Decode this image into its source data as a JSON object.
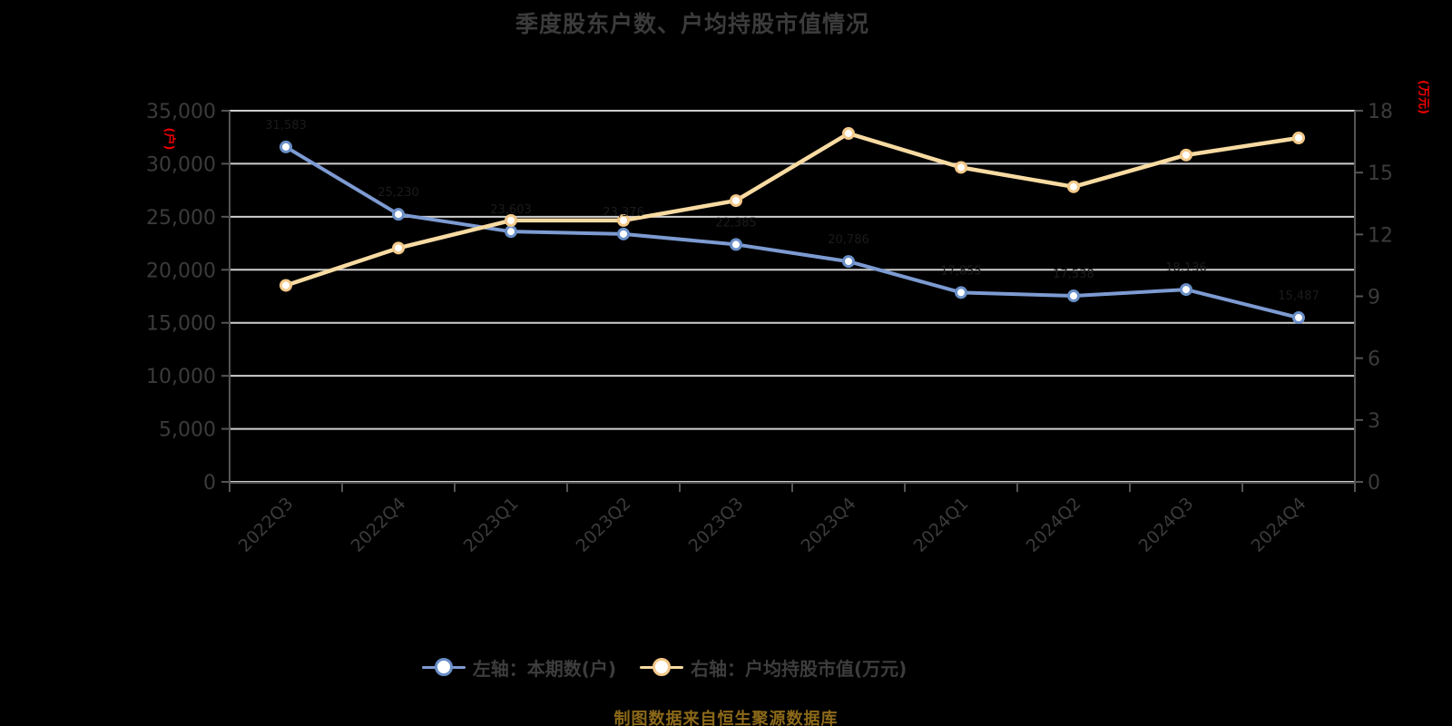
{
  "title": "季度股东户数、户均持股市值情况",
  "caption": "制图数据来自恒生聚源数据库",
  "legend": {
    "items": [
      {
        "label": "左轴：本期数(户)",
        "color": "#7d9bd2",
        "ring": "#6a8fc8"
      },
      {
        "label": "右轴：户均持股市值(万元)",
        "color": "#f8dba2",
        "ring": "#f3c98a"
      }
    ]
  },
  "colors": {
    "background": "#000000",
    "title_text": "#3b3b3b",
    "axis_text": "#3b3b3b",
    "grid_line": "#cfcfcf",
    "axis_line": "#555555",
    "unit_label_red": "#ee0000",
    "hidden_point_label": "#1b1b1b",
    "series_blue": "#7d9bd2",
    "series_blue_ring": "#6a8fc8",
    "series_yellow": "#f8dba2",
    "series_yellow_ring": "#f3c98a",
    "source_text": "#8c6919"
  },
  "chart_data": {
    "type": "line",
    "title": "季度股东户数、户均持股市值情况",
    "grid": true,
    "legend_position": "bottom",
    "categories": [
      "2022Q3",
      "2022Q4",
      "2023Q1",
      "2023Q2",
      "2023Q3",
      "2023Q4",
      "2024Q1",
      "2024Q2",
      "2024Q3",
      "2024Q4"
    ],
    "left_axis": {
      "unit": "(户)",
      "min": 0,
      "max": 35000,
      "tick_step": 5000,
      "tick_labels": [
        "0",
        "5,000",
        "10,000",
        "15,000",
        "20,000",
        "25,000",
        "30,000",
        "35,000"
      ]
    },
    "right_axis": {
      "unit": "(万元)",
      "min": 0,
      "max": 18,
      "tick_step": 3,
      "tick_labels": [
        "0",
        "3",
        "6",
        "9",
        "12",
        "15",
        "18"
      ]
    },
    "series": [
      {
        "name": "左轴：本期数(户)",
        "axis": "left",
        "color": "#7d9bd2",
        "ring": "#6a8fc8",
        "line_width": 4,
        "values": [
          31583,
          25230,
          23603,
          23376,
          22385,
          20786,
          17855,
          17538,
          18136,
          15487
        ],
        "point_labels": [
          "31,583",
          "25,230",
          "23,603",
          "23,376",
          "22,385",
          "20,786",
          "17,855",
          "17,538",
          "18,136",
          "15,487"
        ]
      },
      {
        "name": "右轴：户均持股市值(万元)",
        "axis": "right",
        "color": "#f8dba2",
        "ring": "#f3c98a",
        "line_width": 4.5,
        "values": [
          9.53,
          11.34,
          12.68,
          12.68,
          13.64,
          16.9,
          15.25,
          14.31,
          15.85,
          16.68
        ],
        "point_labels": null
      }
    ]
  }
}
